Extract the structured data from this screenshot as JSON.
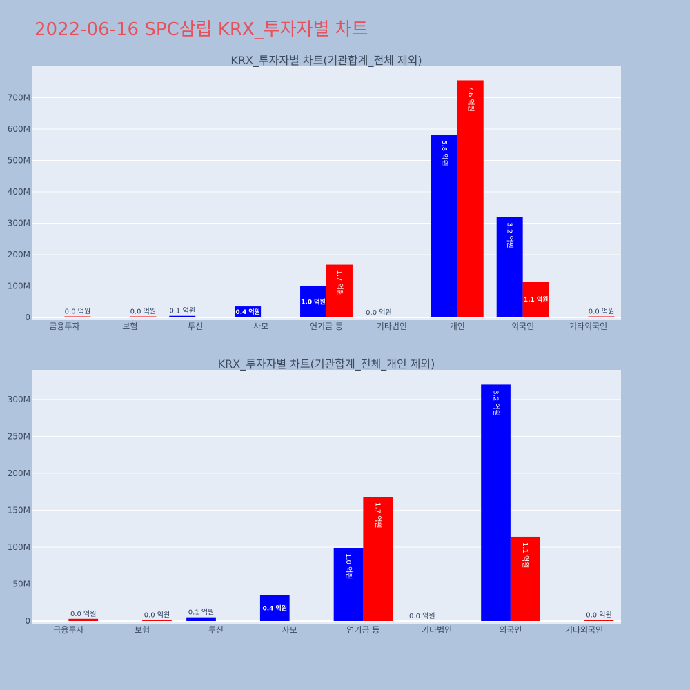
{
  "title": "2022-06-16 SPC삼립 KRX_투자자별 차트",
  "colors": {
    "buy": "#0000ff",
    "sell": "#ff0000",
    "background": "#b0c4de",
    "plot_bg": "#e5ecf6",
    "title": "#e8505b"
  },
  "chart_data": [
    {
      "type": "bar",
      "title": "KRX_투자자별 차트(기관합계_전체 제외)",
      "categories": [
        "금융투자",
        "보험",
        "투신",
        "사모",
        "연기금 등",
        "기타법인",
        "개인",
        "외국인",
        "기타외국인"
      ],
      "series": [
        {
          "color": "#0000ff",
          "values": [
            0,
            0,
            5000000,
            35000000,
            99000000,
            0,
            582000000,
            320000000,
            0
          ],
          "labels": [
            "",
            "",
            "0.1 억원",
            "0.4 억원",
            "1.0 억원",
            "0.0 억원",
            "5.8 억원",
            "3.2 억원",
            ""
          ]
        },
        {
          "color": "#ff0000",
          "values": [
            3000000,
            1000000,
            0,
            0,
            168000000,
            0,
            755000000,
            114000000,
            1000000
          ],
          "labels": [
            "0.0 억원",
            "0.0 억원",
            "",
            "",
            "1.7 억원",
            "",
            "7.6 억원",
            "1.1 억원",
            "0.0 억원"
          ]
        }
      ],
      "yticks": [
        "0",
        "100M",
        "200M",
        "300M",
        "400M",
        "500M",
        "600M",
        "700M"
      ],
      "ylim": [
        0,
        800000000
      ],
      "grid": true,
      "legend": "none"
    },
    {
      "type": "bar",
      "title": "KRX_투자자별 차트(기관합계_전체_개인 제외)",
      "categories": [
        "금융투자",
        "보험",
        "투신",
        "사모",
        "연기금 등",
        "기타법인",
        "외국인",
        "기타외국인"
      ],
      "series": [
        {
          "color": "#0000ff",
          "values": [
            0,
            0,
            5000000,
            35000000,
            99000000,
            0,
            320000000,
            0
          ],
          "labels": [
            "",
            "",
            "0.1 억원",
            "0.4 억원",
            "1.0 억원",
            "0.0 억원",
            "3.2 억원",
            ""
          ]
        },
        {
          "color": "#ff0000",
          "values": [
            3000000,
            1000000,
            0,
            0,
            168000000,
            0,
            114000000,
            1000000
          ],
          "labels": [
            "0.0 억원",
            "0.0 억원",
            "",
            "",
            "1.7 억원",
            "",
            "1.1 억원",
            "0.0 억원"
          ]
        }
      ],
      "yticks": [
        "0",
        "50M",
        "100M",
        "150M",
        "200M",
        "250M",
        "300M"
      ],
      "ylim": [
        0,
        340000000
      ],
      "grid": true,
      "legend": "none"
    }
  ]
}
